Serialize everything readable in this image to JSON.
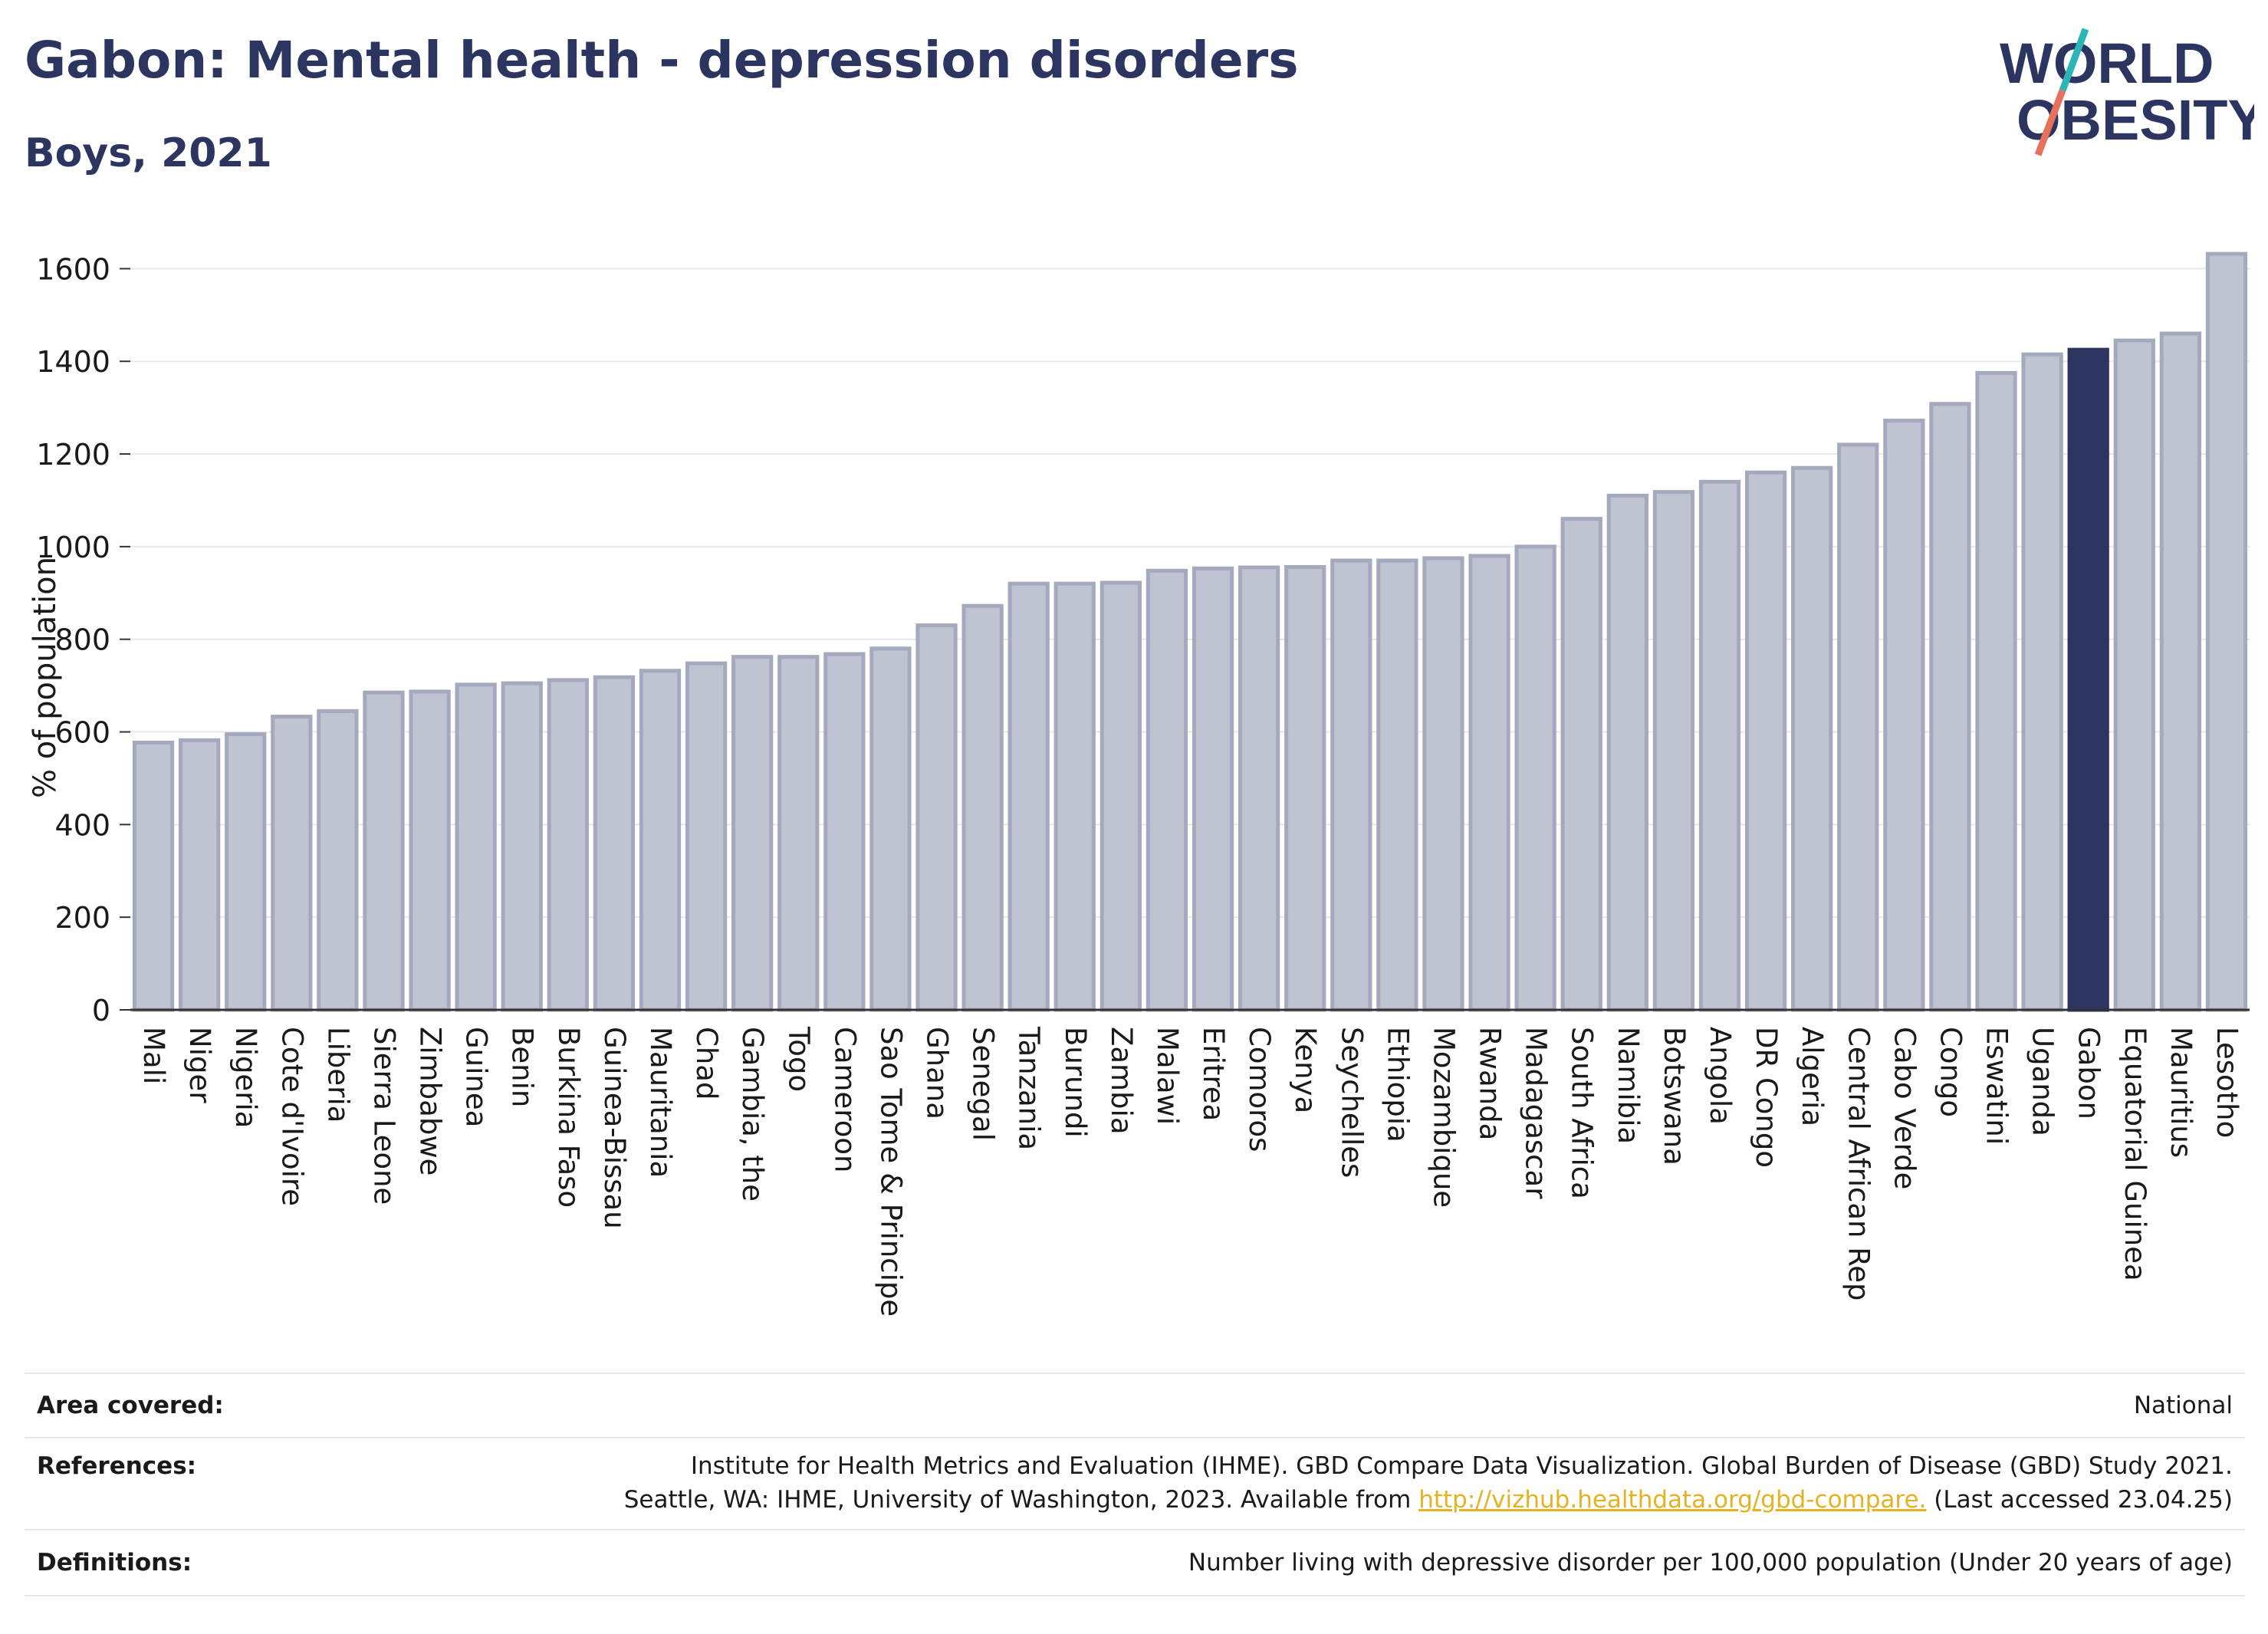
{
  "header": {
    "title": "Gabon: Mental health - depression disorders",
    "subtitle": "Boys, 2021"
  },
  "logo": {
    "line1": "WORLD",
    "line2": "OBESITY",
    "colors": {
      "text": "#2b3560",
      "slash_teal": "#2bb5b5",
      "slash_coral": "#e8705e"
    }
  },
  "colors": {
    "bar_fill": "#bfc3d2",
    "bar_stroke": "#a4a9be",
    "bar_highlight": "#2b3560",
    "grid": "#e8e8e8",
    "axis": "#333333"
  },
  "chart_data": {
    "type": "bar",
    "title": "Gabon: Mental health - depression disorders",
    "subtitle": "Boys, 2021",
    "xlabel": "",
    "ylabel": "% of population",
    "ylim": [
      0,
      1700
    ],
    "yticks": [
      0,
      200,
      400,
      600,
      800,
      1000,
      1200,
      1400,
      1600
    ],
    "grid": true,
    "highlight": "Gabon",
    "categories": [
      "Mali",
      "Niger",
      "Nigeria",
      "Cote d'Ivoire",
      "Liberia",
      "Sierra Leone",
      "Zimbabwe",
      "Guinea",
      "Benin",
      "Burkina Faso",
      "Guinea-Bissau",
      "Mauritania",
      "Chad",
      "Gambia, the",
      "Togo",
      "Cameroon",
      "Sao Tome & Principe",
      "Ghana",
      "Senegal",
      "Tanzania",
      "Burundi",
      "Zambia",
      "Malawi",
      "Eritrea",
      "Comoros",
      "Kenya",
      "Seychelles",
      "Ethiopia",
      "Mozambique",
      "Rwanda",
      "Madagascar",
      "South Africa",
      "Namibia",
      "Botswana",
      "Angola",
      "DR Congo",
      "Algeria",
      "Central African Rep",
      "Cabo Verde",
      "Congo",
      "Eswatini",
      "Uganda",
      "Gabon",
      "Equatorial Guinea",
      "Mauritius",
      "Lesotho"
    ],
    "values": [
      577,
      582,
      595,
      633,
      645,
      685,
      687,
      702,
      705,
      712,
      718,
      732,
      748,
      762,
      762,
      768,
      780,
      830,
      872,
      920,
      920,
      922,
      948,
      953,
      955,
      956,
      970,
      970,
      975,
      980,
      1000,
      1060,
      1110,
      1118,
      1140,
      1160,
      1170,
      1220,
      1272,
      1308,
      1375,
      1415,
      1425,
      1445,
      1460,
      1632
    ]
  },
  "info": {
    "area_label": "Area covered:",
    "area_value": "National",
    "references_label": "References:",
    "references_line1": "Institute for Health Metrics and Evaluation (IHME). GBD Compare Data Visualization. Global Burden of Disease (GBD) Study 2021.",
    "references_line2_pre": "Seattle, WA: IHME, University of Washington, 2023. Available from ",
    "references_link": "http://vizhub.healthdata.org/gbd-compare.",
    "references_line2_post": " (Last accessed 23.04.25)",
    "definitions_label": "Definitions:",
    "definitions_value": "Number living with depressive disorder per 100,000 population (Under 20 years of age)"
  }
}
